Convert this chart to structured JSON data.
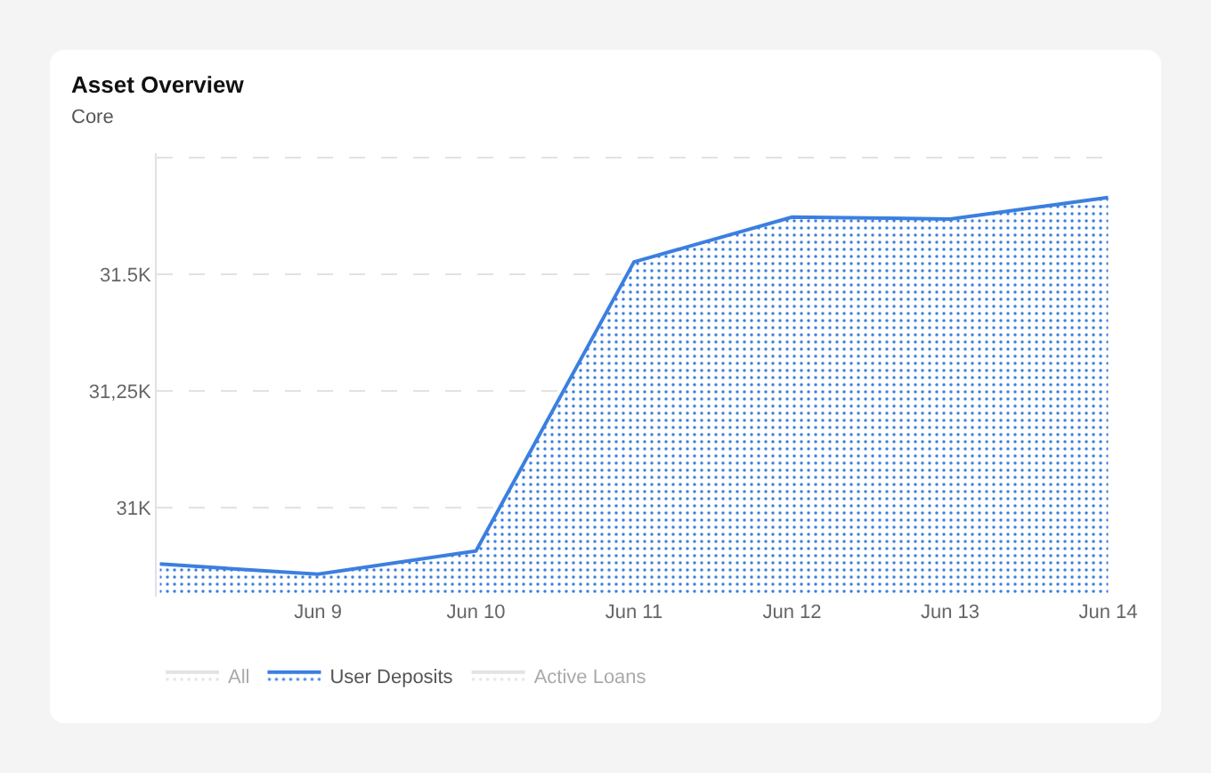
{
  "chart_data": {
    "type": "area",
    "title": "Asset Overview",
    "subtitle": "Core",
    "categories": [
      null,
      "Jun 9",
      "Jun 10",
      "Jun 11",
      "Jun 12",
      "Jun 13",
      "Jun 14"
    ],
    "series": [
      {
        "name": "All",
        "color": "#c8c8c8",
        "values": [
          null,
          null,
          null,
          null,
          null,
          null,
          null
        ]
      },
      {
        "name": "User Deposits",
        "color": "#3b7fe0",
        "values": [
          30880,
          30858,
          30908,
          31527,
          31623,
          31619,
          31665
        ]
      },
      {
        "name": "Active Loans",
        "color": "#c8c8c8",
        "values": [
          null,
          null,
          null,
          null,
          null,
          null,
          null
        ]
      }
    ],
    "ylim": [
      30810,
      31760
    ],
    "yticks": [
      {
        "value": 31000,
        "label": "31K"
      },
      {
        "value": 31250,
        "label": "31,25K"
      },
      {
        "value": 31500,
        "label": "31.5K"
      },
      {
        "value": 31750,
        "label": null
      }
    ],
    "grid": "y",
    "legend": "bottom left",
    "marker": "none",
    "line_style": "solid"
  }
}
